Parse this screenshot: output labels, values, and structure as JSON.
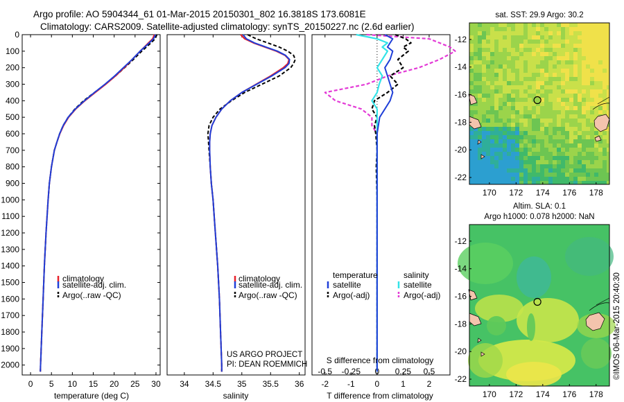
{
  "header": {
    "line1": "Argo profile: AO 5904344_61 01-Mar-2015 20150301_802 16.3818S 173.6081E",
    "line2": "Climatology: CARS2009. Satellite-adjusted climatology: synTS_20150227.nc (2.6d earlier)"
  },
  "colors": {
    "climatology": "#e8202a",
    "satellite": "#1f3fd8",
    "argo": "#000000",
    "s_satellite": "#33e3e8",
    "s_argo": "#e33ad6"
  },
  "chart_data": [
    {
      "id": "temperature",
      "type": "line",
      "xlabel": "temperature (deg C)",
      "ylabel": "",
      "xlim": [
        -2,
        31
      ],
      "ylim": [
        2060,
        0
      ],
      "xticks": [
        0,
        5,
        10,
        15,
        20,
        25,
        30
      ],
      "yticks": [
        0,
        100,
        200,
        300,
        400,
        500,
        600,
        700,
        800,
        900,
        1000,
        1100,
        1200,
        1300,
        1400,
        1500,
        1600,
        1700,
        1800,
        1900,
        2000
      ],
      "legend": [
        "climatology",
        "satellite-adj. clim.",
        "Argo(..raw -QC)"
      ],
      "depth": [
        0,
        25,
        50,
        75,
        100,
        150,
        200,
        250,
        300,
        350,
        400,
        450,
        500,
        550,
        600,
        650,
        700,
        800,
        900,
        1000,
        1200,
        1400,
        1600,
        1800,
        2000,
        2040
      ],
      "series": [
        {
          "name": "climatology",
          "values": [
            29.6,
            29.2,
            28.2,
            27.2,
            26.2,
            24.3,
            22.4,
            20.3,
            18.0,
            15.5,
            13.0,
            10.8,
            9.1,
            7.9,
            7.0,
            6.3,
            5.7,
            5.0,
            4.5,
            4.2,
            3.7,
            3.3,
            3.0,
            2.7,
            2.4,
            2.35
          ]
        },
        {
          "name": "satellite",
          "values": [
            29.9,
            29.4,
            28.4,
            27.3,
            26.2,
            24.3,
            22.2,
            20.1,
            17.8,
            15.3,
            12.9,
            10.7,
            9.0,
            7.8,
            6.95,
            6.3,
            5.7,
            5.0,
            4.5,
            4.2,
            3.7,
            3.3,
            3.0,
            2.7,
            2.4,
            2.35
          ]
        },
        {
          "name": "argo",
          "values": [
            30.2,
            29.8,
            28.8,
            27.7,
            26.6,
            24.6,
            22.5,
            20.3,
            17.9,
            15.3,
            12.7,
            10.6,
            9.0,
            7.8,
            6.95,
            6.3,
            5.7,
            5.0,
            4.5,
            4.2,
            3.7,
            3.3,
            3.0,
            2.7,
            2.4,
            2.35
          ]
        }
      ]
    },
    {
      "id": "salinity",
      "type": "line",
      "xlabel": "salinity",
      "ylabel": "",
      "xlim": [
        33.7,
        36.1
      ],
      "ylim": [
        2060,
        0
      ],
      "xticks": [
        34,
        34.5,
        35,
        35.5,
        36
      ],
      "legend": [
        "climatology",
        "satellite-adj. clim.",
        "Argo(..raw -QC)"
      ],
      "annotations": [
        "US ARGO PROJECT",
        "PI: DEAN ROEMMICH"
      ],
      "depth": [
        0,
        25,
        50,
        75,
        100,
        125,
        150,
        175,
        200,
        250,
        300,
        350,
        400,
        450,
        500,
        550,
        600,
        650,
        700,
        800,
        900,
        1000,
        1200,
        1400,
        1600,
        1800,
        2000,
        2040
      ],
      "series": [
        {
          "name": "climatology",
          "values": [
            34.98,
            35.05,
            35.2,
            35.4,
            35.6,
            35.75,
            35.82,
            35.8,
            35.72,
            35.5,
            35.25,
            35.0,
            34.8,
            34.65,
            34.55,
            34.48,
            34.45,
            34.44,
            34.44,
            34.45,
            34.47,
            34.5,
            34.54,
            34.58,
            34.61,
            34.63,
            34.65,
            34.65
          ]
        },
        {
          "name": "satellite",
          "values": [
            35.02,
            35.08,
            35.22,
            35.42,
            35.62,
            35.76,
            35.83,
            35.82,
            35.75,
            35.52,
            35.26,
            35.0,
            34.8,
            34.65,
            34.55,
            34.48,
            34.45,
            34.44,
            34.44,
            34.45,
            34.47,
            34.5,
            34.54,
            34.58,
            34.61,
            34.63,
            34.65,
            34.65
          ]
        },
        {
          "name": "argo",
          "values": [
            35.1,
            35.25,
            35.45,
            35.65,
            35.8,
            35.9,
            35.93,
            35.9,
            35.85,
            35.65,
            35.35,
            35.05,
            34.82,
            34.62,
            34.5,
            34.43,
            34.41,
            34.42,
            34.43,
            34.45,
            34.47,
            34.5,
            34.54,
            34.58,
            34.61,
            34.63,
            34.65,
            34.65
          ]
        }
      ]
    },
    {
      "id": "difference",
      "type": "line",
      "xlabel": "T difference from climatology",
      "top_xlabel": "S difference from climatology",
      "ylim": [
        2060,
        0
      ],
      "xlim": [
        -2.5,
        2.8
      ],
      "xticks": [
        -2,
        -1,
        0,
        1,
        2
      ],
      "s_ticks": [
        -0.5,
        -0.25,
        0,
        0.25,
        0.5
      ],
      "legend_headers": [
        "temperature",
        "salinity"
      ],
      "legend": [
        "satellite",
        "Argo(-adj)",
        "satellite",
        "Argo(-adj)"
      ],
      "depth": [
        0,
        25,
        50,
        75,
        100,
        150,
        200,
        250,
        300,
        350,
        400,
        450,
        500,
        550,
        600,
        700,
        800,
        1000,
        1200,
        1500,
        2000,
        2040
      ],
      "series": [
        {
          "name": "temperature satellite",
          "values": [
            0.3,
            0.6,
            0.5,
            0.4,
            0.6,
            0.5,
            0.3,
            0.4,
            0.5,
            0.6,
            0.5,
            0.3,
            0.1,
            0.05,
            0.0,
            0.0,
            0.0,
            0.0,
            0.0,
            0.0,
            0.0,
            0.0
          ]
        },
        {
          "name": "temperature argo",
          "values": [
            0.7,
            1.1,
            1.3,
            1.0,
            1.2,
            0.8,
            1.0,
            0.5,
            0.8,
            0.4,
            -0.1,
            -0.2,
            0.0,
            -0.1,
            -0.05,
            0.0,
            -0.03,
            0.0,
            0.0,
            0.0,
            0.0,
            0.0
          ]
        },
        {
          "name": "salinity satellite",
          "values": [
            -0.2,
            0.0,
            0.1,
            0.05,
            0.1,
            0.05,
            0.0,
            0.05,
            0.02,
            0.0,
            -0.05,
            0.0,
            0.0,
            0.0,
            0.0,
            0.0,
            0.0,
            0.0,
            0.0,
            0.0,
            0.0,
            0.0
          ]
        },
        {
          "name": "salinity argo",
          "values": [
            -0.1,
            0.5,
            0.6,
            0.7,
            0.75,
            0.6,
            0.4,
            0.1,
            -0.1,
            -0.5,
            -0.4,
            -0.15,
            -0.05,
            -0.05,
            0.0,
            0.0,
            0.0,
            0.0,
            0.0,
            0.0,
            0.0,
            0.0
          ]
        }
      ]
    },
    {
      "id": "sst_map",
      "type": "heatmap",
      "title": "sat. SST: 29.9 Argo: 30.2",
      "xlim": [
        168.5,
        179
      ],
      "ylim": [
        -22.5,
        -10.8
      ],
      "xticks": [
        170,
        172,
        174,
        176,
        178
      ],
      "yticks": [
        -12,
        -14,
        -16,
        -18,
        -20,
        -22
      ],
      "marker": {
        "lon": 173.6,
        "lat": -16.4
      }
    },
    {
      "id": "sla_map",
      "type": "heatmap",
      "title": "Altim. SLA: 0.1",
      "subtitle": "Argo h1000: 0.078 h2000: NaN",
      "xlim": [
        168.5,
        179
      ],
      "ylim": [
        -22.5,
        -10.8
      ],
      "xticks": [
        170,
        172,
        174,
        176,
        178
      ],
      "yticks": [
        -12,
        -14,
        -16,
        -18,
        -20,
        -22
      ],
      "marker": {
        "lon": 173.6,
        "lat": -16.4
      }
    }
  ],
  "footer": {
    "credit": "©IMOS 06-Mar-2015 20:40:30"
  }
}
